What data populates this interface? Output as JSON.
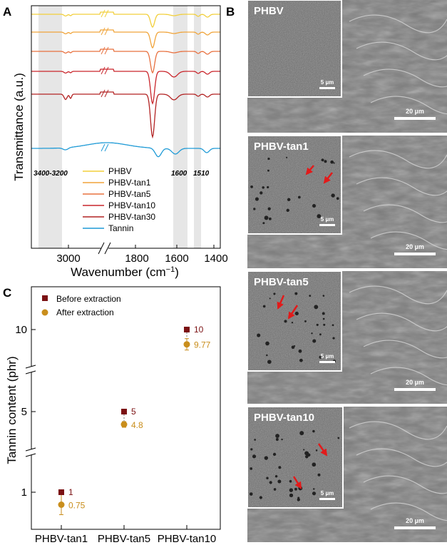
{
  "panels": {
    "a": "A",
    "b": "B",
    "c": "C"
  },
  "chart_data": [
    {
      "type": "line",
      "panel": "A",
      "xlabel_main": "Wavenumber (cm",
      "xlabel_sup": "−1",
      "xlabel_close": ")",
      "ylabel": "Transmittance (a.u.)",
      "x_reversed": true,
      "x_axis_break": true,
      "x_ticks": [
        "3000",
        "1800",
        "1600",
        "1400"
      ],
      "shaded_bands": [
        {
          "label": "3400-3200",
          "range": [
            3400,
            3200
          ]
        },
        {
          "label": "1600",
          "range": [
            1620,
            1575
          ]
        },
        {
          "label": "1510",
          "range": [
            1525,
            1505
          ]
        }
      ],
      "series": [
        {
          "name": "PHBV",
          "color": "#f2cf3b"
        },
        {
          "name": "PHBV-tan1",
          "color": "#f0a43a"
        },
        {
          "name": "PHBV-tan5",
          "color": "#e8703f"
        },
        {
          "name": "PHBV-tan10",
          "color": "#c9252b"
        },
        {
          "name": "PHBV-tan30",
          "color": "#b22222"
        },
        {
          "name": "Tannin",
          "color": "#1e9ad6"
        }
      ]
    },
    {
      "type": "scatter",
      "panel": "C",
      "ylabel": "Tannin content (phr)",
      "categories": [
        "PHBV-tan1",
        "PHBV-tan5",
        "PHBV-tan10"
      ],
      "y_ticks": [
        "1",
        "5",
        "10"
      ],
      "y_axis_breaks": true,
      "series": [
        {
          "name": "Before extraction",
          "color": "#7b1113",
          "marker": "square",
          "values": [
            1,
            5,
            10
          ],
          "labels": [
            "1",
            "5",
            "10"
          ]
        },
        {
          "name": "After extraction",
          "color": "#c98e1c",
          "marker": "circle",
          "values": [
            0.75,
            4.8,
            9.77
          ],
          "labels": [
            "0.75",
            "4.8",
            "9.77"
          ]
        }
      ]
    }
  ],
  "sem": [
    {
      "title": "PHBV",
      "inset_scale": "5 µm",
      "main_scale": "20 µm"
    },
    {
      "title": "PHBV-tan1",
      "inset_scale": "5 µm",
      "main_scale": "20 µm"
    },
    {
      "title": "PHBV-tan5",
      "inset_scale": "5 µm",
      "main_scale": "20 µm"
    },
    {
      "title": "PHBV-tan10",
      "inset_scale": "5 µm",
      "main_scale": "20 µm"
    }
  ],
  "colors": {
    "arrow": "#e21a1a",
    "band": "#e6e6e6",
    "sem_dark": "#5a5a5a",
    "sem_mid": "#8a8a8a"
  }
}
